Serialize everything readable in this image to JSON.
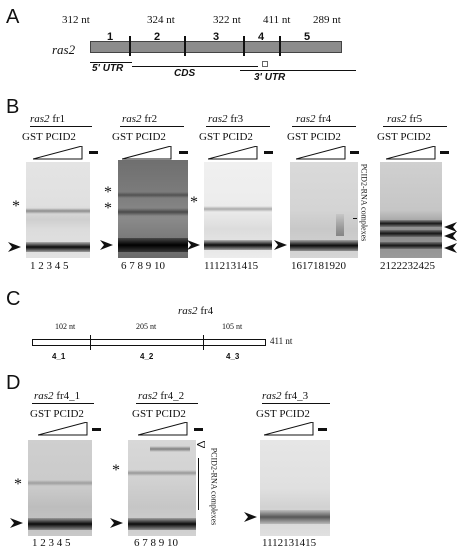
{
  "panels": {
    "A": "A",
    "B": "B",
    "C": "C",
    "D": "D"
  },
  "panel_a": {
    "gene": "ras2",
    "segment_lengths": [
      "312 nt",
      "324 nt",
      "322 nt",
      "411 nt",
      "289 nt"
    ],
    "segment_numbers": [
      "1",
      "2",
      "3",
      "4",
      "5"
    ],
    "utr5": "5' UTR",
    "cds": "CDS",
    "utr3": "3' UTR"
  },
  "panel_b": {
    "titles": [
      {
        "gene": "ras2",
        "frag": "fr1"
      },
      {
        "gene": "ras2",
        "frag": "fr2"
      },
      {
        "gene": "ras2",
        "frag": "fr3"
      },
      {
        "gene": "ras2",
        "frag": "fr4"
      },
      {
        "gene": "ras2",
        "frag": "fr5"
      }
    ],
    "protein": "GST PCID2",
    "lane_numbers": [
      "1 2 3 4 5",
      "6 7 8 9 10",
      "1112131415",
      "1617181920",
      "2122232425"
    ],
    "complex_label": "PCID2-RNA complexes"
  },
  "panel_c": {
    "title": "ras2 fr4",
    "title_gene": "ras2",
    "title_frag": "fr4",
    "lengths": [
      "102 nt",
      "205 nt",
      "105 nt"
    ],
    "total": "411 nt",
    "segments": [
      "4_1",
      "4_2",
      "4_3"
    ]
  },
  "panel_d": {
    "titles": [
      {
        "gene": "ras2",
        "frag": "fr4_1"
      },
      {
        "gene": "ras2",
        "frag": "fr4_2"
      },
      {
        "gene": "ras2",
        "frag": "fr4_3"
      }
    ],
    "protein": "GST PCID2",
    "lane_numbers": [
      "1 2 3 4 5",
      "6 7 8 9 10",
      "1112131415"
    ],
    "complex_label": "PCID2-RNA complexes"
  },
  "markers": {
    "star": "*",
    "minus": "-"
  }
}
